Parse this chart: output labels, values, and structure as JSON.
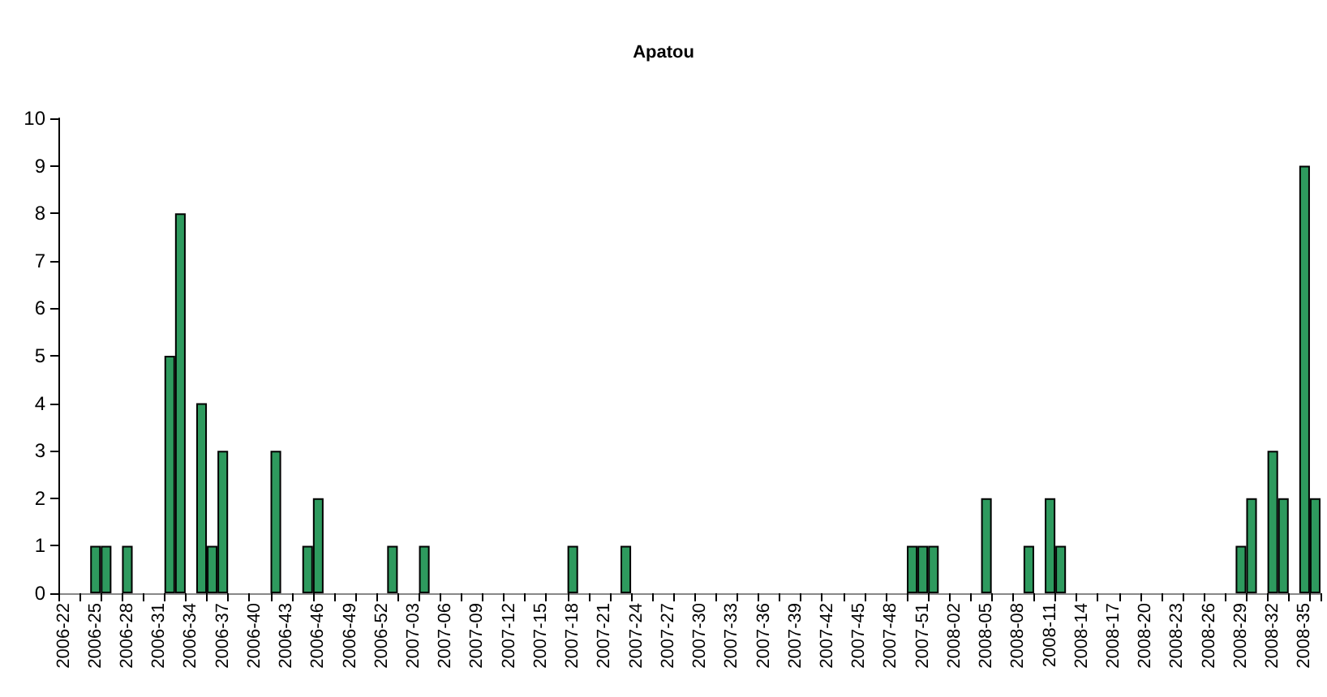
{
  "chart_data": {
    "type": "bar",
    "title": "Apatou",
    "categories": [
      "2006-22",
      null,
      null,
      "2006-25",
      null,
      null,
      "2006-28",
      null,
      null,
      "2006-31",
      null,
      null,
      "2006-34",
      null,
      null,
      "2006-37",
      null,
      null,
      "2006-40",
      null,
      null,
      "2006-43",
      null,
      null,
      "2006-46",
      null,
      null,
      "2006-49",
      null,
      null,
      "2006-52",
      null,
      null,
      "2007-03",
      null,
      null,
      "2007-06",
      null,
      null,
      "2007-09",
      null,
      null,
      "2007-12",
      null,
      null,
      "2007-15",
      null,
      null,
      "2007-18",
      null,
      null,
      "2007-21",
      null,
      null,
      "2007-24",
      null,
      null,
      "2007-27",
      null,
      null,
      "2007-30",
      null,
      null,
      "2007-33",
      null,
      null,
      "2007-36",
      null,
      null,
      "2007-39",
      null,
      null,
      "2007-42",
      null,
      null,
      "2007-45",
      null,
      null,
      "2007-48",
      null,
      null,
      "2007-51",
      null,
      null,
      "2008-02",
      null,
      null,
      "2008-05",
      null,
      null,
      "2008-08",
      null,
      null,
      "2008-11",
      null,
      null,
      "2008-14",
      null,
      null,
      "2008-17",
      null,
      null,
      "2008-20",
      null,
      null,
      "2008-23",
      null,
      null,
      "2008-26",
      null,
      null,
      "2008-29",
      null,
      null,
      "2008-32",
      null,
      null,
      "2008-35",
      null
    ],
    "values": [
      0,
      0,
      0,
      1,
      1,
      0,
      1,
      0,
      0,
      0,
      5,
      8,
      0,
      4,
      1,
      3,
      0,
      0,
      0,
      0,
      3,
      0,
      0,
      1,
      2,
      0,
      0,
      0,
      0,
      0,
      0,
      1,
      0,
      0,
      1,
      0,
      0,
      0,
      0,
      0,
      0,
      0,
      0,
      0,
      0,
      0,
      0,
      0,
      1,
      0,
      0,
      0,
      0,
      1,
      0,
      0,
      0,
      0,
      0,
      0,
      0,
      0,
      0,
      0,
      0,
      0,
      0,
      0,
      0,
      0,
      0,
      0,
      0,
      0,
      0,
      0,
      0,
      0,
      0,
      0,
      1,
      1,
      1,
      0,
      0,
      0,
      0,
      2,
      0,
      0,
      0,
      1,
      0,
      2,
      1,
      0,
      0,
      0,
      0,
      0,
      0,
      0,
      0,
      0,
      0,
      0,
      0,
      0,
      0,
      0,
      0,
      1,
      2,
      0,
      3,
      2,
      0,
      9,
      2
    ],
    "color": "#2e9a5e",
    "ylim": [
      0,
      10
    ],
    "yticks": [
      0,
      1,
      2,
      3,
      4,
      5,
      6,
      7,
      8,
      9,
      10
    ],
    "grid": false
  }
}
